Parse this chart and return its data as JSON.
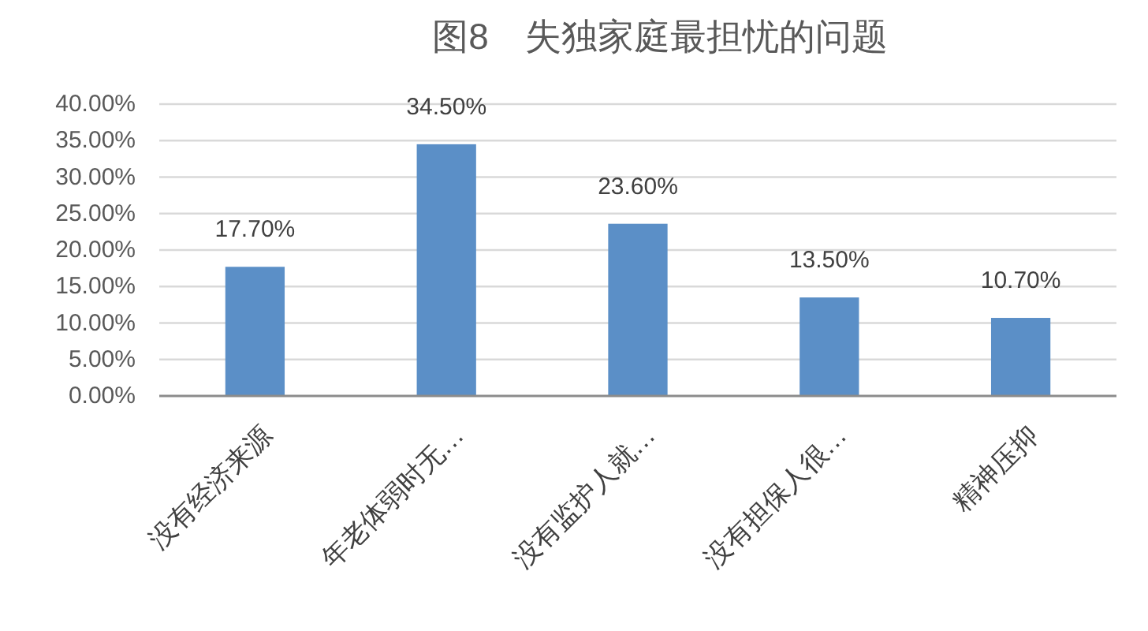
{
  "chart_data": {
    "type": "bar",
    "title": "图8　失独家庭最担忧的问题",
    "categories": [
      "没有经济来源",
      "年老体弱时无…",
      "没有监护人就…",
      "没有担保人很…",
      "精神压抑"
    ],
    "values": [
      17.7,
      34.5,
      23.6,
      13.5,
      10.7
    ],
    "color": "#5b8fc7",
    "value_labels": [
      "17.70%",
      "34.50%",
      "23.60%",
      "13.50%",
      "10.70%"
    ],
    "ylim": [
      0,
      40
    ],
    "yticks": [
      {
        "value": 0,
        "label": "0.00%"
      },
      {
        "value": 5,
        "label": "5.00%"
      },
      {
        "value": 10,
        "label": "10.00%"
      },
      {
        "value": 15,
        "label": "15.00%"
      },
      {
        "value": 20,
        "label": "20.00%"
      },
      {
        "value": 25,
        "label": "25.00%"
      },
      {
        "value": 30,
        "label": "30.00%"
      },
      {
        "value": 35,
        "label": "35.00%"
      },
      {
        "value": 40,
        "label": "40.00%"
      }
    ],
    "grid": "y"
  }
}
